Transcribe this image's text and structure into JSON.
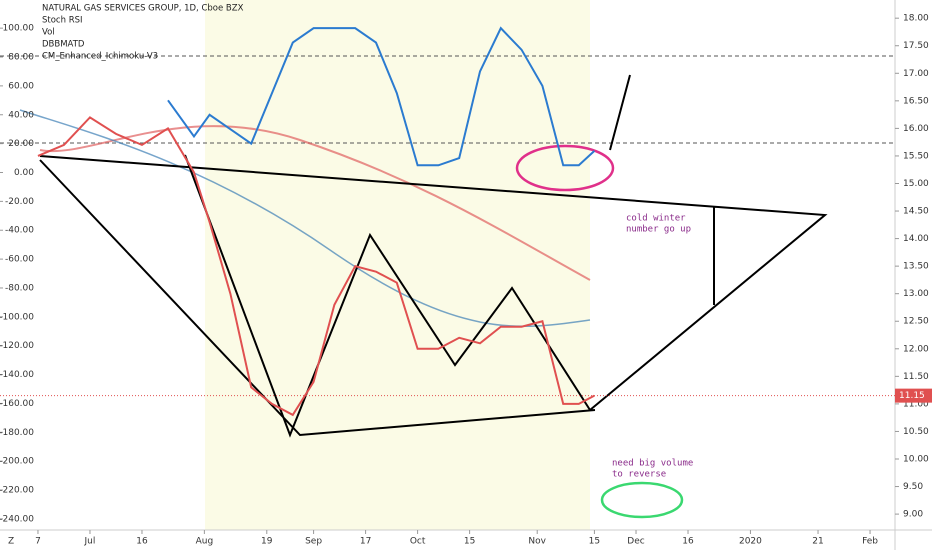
{
  "legend": [
    "NATURAL GAS SERVICES GROUP, 1D, Cboe BZX",
    "Stoch RSI",
    "Vol",
    "DBBMATD",
    "CM_Enhanced_Ichimoku-V3"
  ],
  "annotations": [
    "cold winter",
    "number go up",
    "need big volume",
    "to reverse"
  ],
  "corner": "Z",
  "chart_data": {
    "type": "line",
    "x": [
      0,
      5,
      10,
      15,
      20,
      25,
      30,
      33,
      37,
      41,
      45,
      49,
      53,
      57,
      61,
      65,
      69,
      73,
      77,
      81,
      85,
      89,
      93,
      97,
      101,
      104,
      107
    ],
    "series": [
      {
        "color": "#e05050",
        "values": [
          15.5,
          15.7,
          16.2,
          15.9,
          15.7,
          16.0,
          15.2,
          14.3,
          13.0,
          11.3,
          11.0,
          10.8,
          11.4,
          12.8,
          13.5,
          13.4,
          13.2,
          12.0,
          12.0,
          12.2,
          12.1,
          12.4,
          12.4,
          12.5,
          11.0,
          11.0,
          11.15
        ]
      },
      {
        "color": "#2b7bd0",
        "axis": "y2",
        "values": [
          null,
          null,
          null,
          null,
          null,
          50,
          25,
          40,
          30,
          20,
          55,
          90,
          100,
          100,
          100,
          90,
          55,
          5,
          5,
          10,
          70,
          100,
          85,
          60,
          5,
          5,
          15
        ]
      }
    ],
    "last_price": 11.15,
    "xlim": [
      -7.3,
      164.8
    ],
    "xticks": [
      {
        "value": 0,
        "label": "7"
      },
      {
        "value": 10,
        "label": "Jul"
      },
      {
        "value": 20,
        "label": "16"
      },
      {
        "value": 32,
        "label": "Aug"
      },
      {
        "value": 44,
        "label": "19"
      },
      {
        "value": 53,
        "label": "Sep"
      },
      {
        "value": 63,
        "label": "17"
      },
      {
        "value": 73,
        "label": "Oct"
      },
      {
        "value": 83,
        "label": "15"
      },
      {
        "value": 96,
        "label": "Nov"
      },
      {
        "value": 107,
        "label": "15"
      },
      {
        "value": 115,
        "label": "Dec"
      },
      {
        "value": 125,
        "label": "16"
      },
      {
        "value": 137,
        "label": "2020"
      },
      {
        "value": 150,
        "label": "21"
      },
      {
        "value": 160,
        "label": "Feb"
      }
    ],
    "ylim": [
      8.53,
      18.33
    ],
    "yticks": [
      {
        "value": 18,
        "label": "18.00"
      },
      {
        "value": 17.5,
        "label": "17.50"
      },
      {
        "value": 17,
        "label": "17.00"
      },
      {
        "value": 16.5,
        "label": "16.50"
      },
      {
        "value": 16,
        "label": "16.00"
      },
      {
        "value": 15.5,
        "label": "15.50"
      },
      {
        "value": 15,
        "label": "15.00"
      },
      {
        "value": 14.5,
        "label": "14.50"
      },
      {
        "value": 14,
        "label": "14.00"
      },
      {
        "value": 13.5,
        "label": "13.50"
      },
      {
        "value": 13,
        "label": "13.00"
      },
      {
        "value": 12.5,
        "label": "12.50"
      },
      {
        "value": 12,
        "label": "12.00"
      },
      {
        "value": 11.5,
        "label": "11.50"
      },
      {
        "value": 11,
        "label": "11.00"
      },
      {
        "value": 10.5,
        "label": "10.50"
      },
      {
        "value": 10,
        "label": "10.00"
      },
      {
        "value": 9.5,
        "label": "9.50"
      },
      {
        "value": 9,
        "label": "9.00"
      }
    ],
    "y2lim": [
      -254.6,
      119.5
    ],
    "y2ticks": [
      {
        "value": 100,
        "label": "100.00"
      },
      {
        "value": 80,
        "label": "80.00"
      },
      {
        "value": 60,
        "label": "60.00"
      },
      {
        "value": 40,
        "label": "40.00"
      },
      {
        "value": 20,
        "label": "20.00"
      },
      {
        "value": 0,
        "label": "0.00"
      },
      {
        "value": -20,
        "label": "-20.00"
      },
      {
        "value": -40,
        "label": "-40.00"
      },
      {
        "value": -60,
        "label": "-60.00"
      },
      {
        "value": -80,
        "label": "-80.00"
      },
      {
        "value": -100,
        "label": "-100.00"
      },
      {
        "value": -120,
        "label": "-120.00"
      },
      {
        "value": -140,
        "label": "-140.00"
      },
      {
        "value": -160,
        "label": "-160.00"
      },
      {
        "value": -180,
        "label": "-180.00"
      },
      {
        "value": -200,
        "label": "-200.00"
      },
      {
        "value": -220,
        "label": "-220.00"
      },
      {
        "value": -240,
        "label": "-240.00"
      }
    ]
  }
}
